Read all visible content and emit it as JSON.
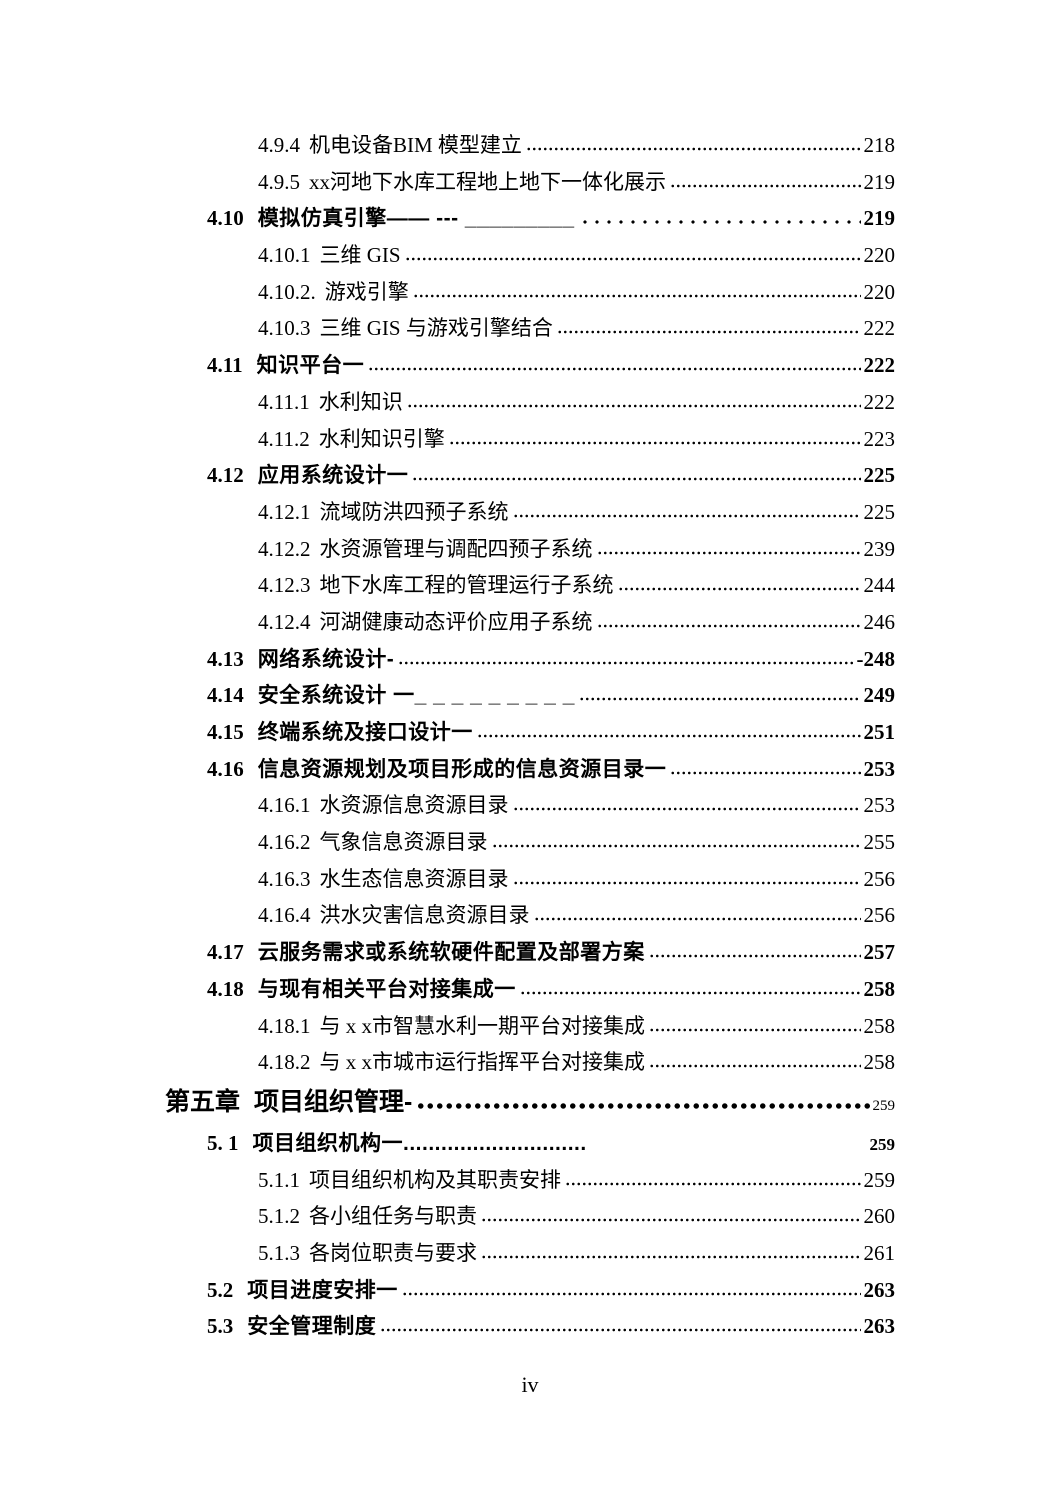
{
  "page": {
    "footer_page_number": "iv"
  },
  "toc": {
    "entries": [
      {
        "num": "4.9.4",
        "text": "机电设备BIM 模型建立",
        "page": "218",
        "level": "sub",
        "leader": "fine"
      },
      {
        "num": "4.9.5",
        "text": "xx河地下水库工程地上地下一体化展示",
        "page": "219",
        "level": "sub",
        "leader": "fine"
      },
      {
        "num": "4.10",
        "text": "模拟仿真引擎—— --- _________",
        "page": "219",
        "level": "section",
        "leader": "ellipsis"
      },
      {
        "num": "4.10.1",
        "text": "三维 GIS",
        "page": "220",
        "level": "sub",
        "leader": "fine"
      },
      {
        "num": "4.10.2.",
        "text": "游戏引擎",
        "page": "220",
        "level": "sub",
        "leader": "fine"
      },
      {
        "num": "4.10.3",
        "text": "三维 GIS 与游戏引擎结合",
        "page": "222",
        "level": "sub",
        "leader": "fine"
      },
      {
        "num": "4.11",
        "text": "知识平台一",
        "page": "222",
        "level": "section",
        "leader": "fine"
      },
      {
        "num": "4.11.1",
        "text": "水利知识",
        "page": "222",
        "level": "sub",
        "leader": "fine"
      },
      {
        "num": "4.11.2",
        "text": "水利知识引擎",
        "page": "223",
        "level": "sub",
        "leader": "fine"
      },
      {
        "num": "4.12",
        "text": "应用系统设计一",
        "page": "225",
        "level": "section",
        "leader": "fine"
      },
      {
        "num": "4.12.1",
        "text": "流域防洪四预子系统",
        "page": "225",
        "level": "sub",
        "leader": "fine"
      },
      {
        "num": "4.12.2",
        "text": "水资源管理与调配四预子系统",
        "page": "239",
        "level": "sub",
        "leader": "fine"
      },
      {
        "num": "4.12.3",
        "text": "地下水库工程的管理运行子系统",
        "page": "244",
        "level": "sub",
        "leader": "fine"
      },
      {
        "num": "4.12.4",
        "text": "河湖健康动态评价应用子系统",
        "page": "246",
        "level": "sub",
        "leader": "fine"
      },
      {
        "num": "4.13",
        "text": "网络系统设计-",
        "page": "-248",
        "level": "section",
        "leader": "fine"
      },
      {
        "num": "4.14",
        "text": "安全系统设计 一_ _ _ _ _ _ _ _ _",
        "page": "249",
        "level": "section",
        "leader": "fine"
      },
      {
        "num": "4.15",
        "text": "终端系统及接口设计一",
        "page": "251",
        "level": "section",
        "leader": "fine"
      },
      {
        "num": "4.16",
        "text": "信息资源规划及项目形成的信息资源目录一",
        "page": "253",
        "level": "section",
        "leader": "fine"
      },
      {
        "num": "4.16.1",
        "text": "水资源信息资源目录",
        "page": "253",
        "level": "sub",
        "leader": "fine"
      },
      {
        "num": "4.16.2",
        "text": "气象信息资源目录",
        "page": "255",
        "level": "sub",
        "leader": "fine"
      },
      {
        "num": "4.16.3",
        "text": "水生态信息资源目录",
        "page": "256",
        "level": "sub",
        "leader": "fine"
      },
      {
        "num": "4.16.4",
        "text": "洪水灾害信息资源目录",
        "page": "256",
        "level": "sub",
        "leader": "fine"
      },
      {
        "num": "4.17",
        "text": "云服务需求或系统软硬件配置及部署方案",
        "page": "257",
        "level": "section",
        "leader": "fine"
      },
      {
        "num": "4.18",
        "text": "与现有相关平台对接集成一",
        "page": "258",
        "level": "section",
        "leader": "fine"
      },
      {
        "num": "4.18.1",
        "text": "与 x x市智慧水利一期平台对接集成",
        "page": "258",
        "level": "sub",
        "leader": "fine"
      },
      {
        "num": "4.18.2",
        "text": "与 x x市城市运行指挥平台对接集成",
        "page": "258",
        "level": "sub",
        "leader": "fine"
      },
      {
        "num": "第五章",
        "text": "项目组织管理-",
        "page": "259",
        "level": "chapter",
        "leader": "heavy"
      },
      {
        "num": "5. 1",
        "text": "项目组织机构一.............................",
        "page": "259",
        "level": "section",
        "leader": "none",
        "page_small": true
      },
      {
        "num": "5.1.1",
        "text": "项目组织机构及其职责安排",
        "page": "259",
        "level": "sub",
        "leader": "fine"
      },
      {
        "num": "5.1.2",
        "text": "各小组任务与职责",
        "page": "260",
        "level": "sub",
        "leader": "fine"
      },
      {
        "num": "5.1.3",
        "text": "各岗位职责与要求",
        "page": "261",
        "level": "sub",
        "leader": "fine"
      },
      {
        "num": "5.2",
        "text": "项目进度安排一",
        "page": "263",
        "level": "section",
        "leader": "fine"
      },
      {
        "num": "5.3",
        "text": "安全管理制度",
        "page": "263",
        "level": "section",
        "leader": "fine"
      }
    ]
  }
}
